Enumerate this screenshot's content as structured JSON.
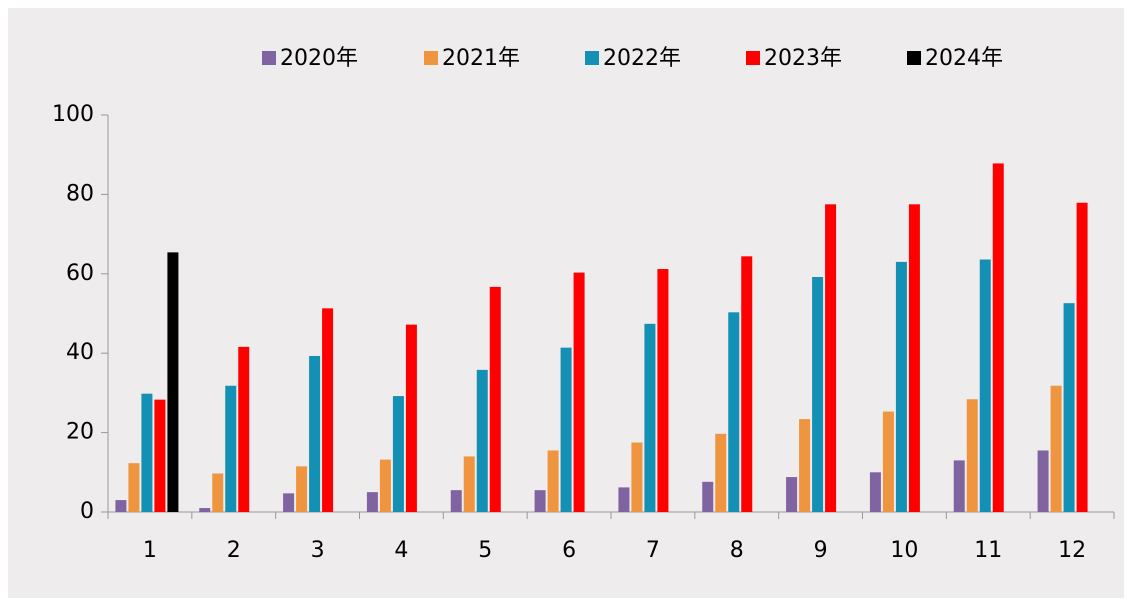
{
  "chart_data": {
    "type": "bar",
    "categories": [
      "1",
      "2",
      "3",
      "4",
      "5",
      "6",
      "7",
      "8",
      "9",
      "10",
      "11",
      "12"
    ],
    "series": [
      {
        "name": "2020年",
        "color": "#8064a2",
        "values": [
          3,
          1,
          4.7,
          5,
          5.5,
          5.5,
          6.2,
          7.6,
          8.8,
          10,
          13,
          15.5
        ]
      },
      {
        "name": "2021年",
        "color": "#f0953f",
        "values": [
          12.3,
          9.7,
          11.5,
          13.2,
          14,
          15.5,
          17.5,
          19.7,
          23.4,
          25.3,
          28.4,
          31.8
        ]
      },
      {
        "name": "2022年",
        "color": "#1490b4",
        "values": [
          29.8,
          31.8,
          39.3,
          29.2,
          35.8,
          41.4,
          47.4,
          50.3,
          59.2,
          63,
          63.6,
          52.6
        ]
      },
      {
        "name": "2023年",
        "color": "#ff0000",
        "values": [
          28.3,
          41.6,
          51.3,
          47.2,
          56.7,
          60.3,
          61.2,
          64.4,
          77.5,
          77.5,
          87.8,
          77.9
        ]
      },
      {
        "name": "2024年",
        "color": "#000000",
        "values": [
          65.4,
          null,
          null,
          null,
          null,
          null,
          null,
          null,
          null,
          null,
          null,
          null
        ]
      }
    ],
    "ylim": [
      0,
      100
    ],
    "yticks": [
      0,
      20,
      40,
      60,
      80,
      100
    ],
    "legend": "top"
  }
}
